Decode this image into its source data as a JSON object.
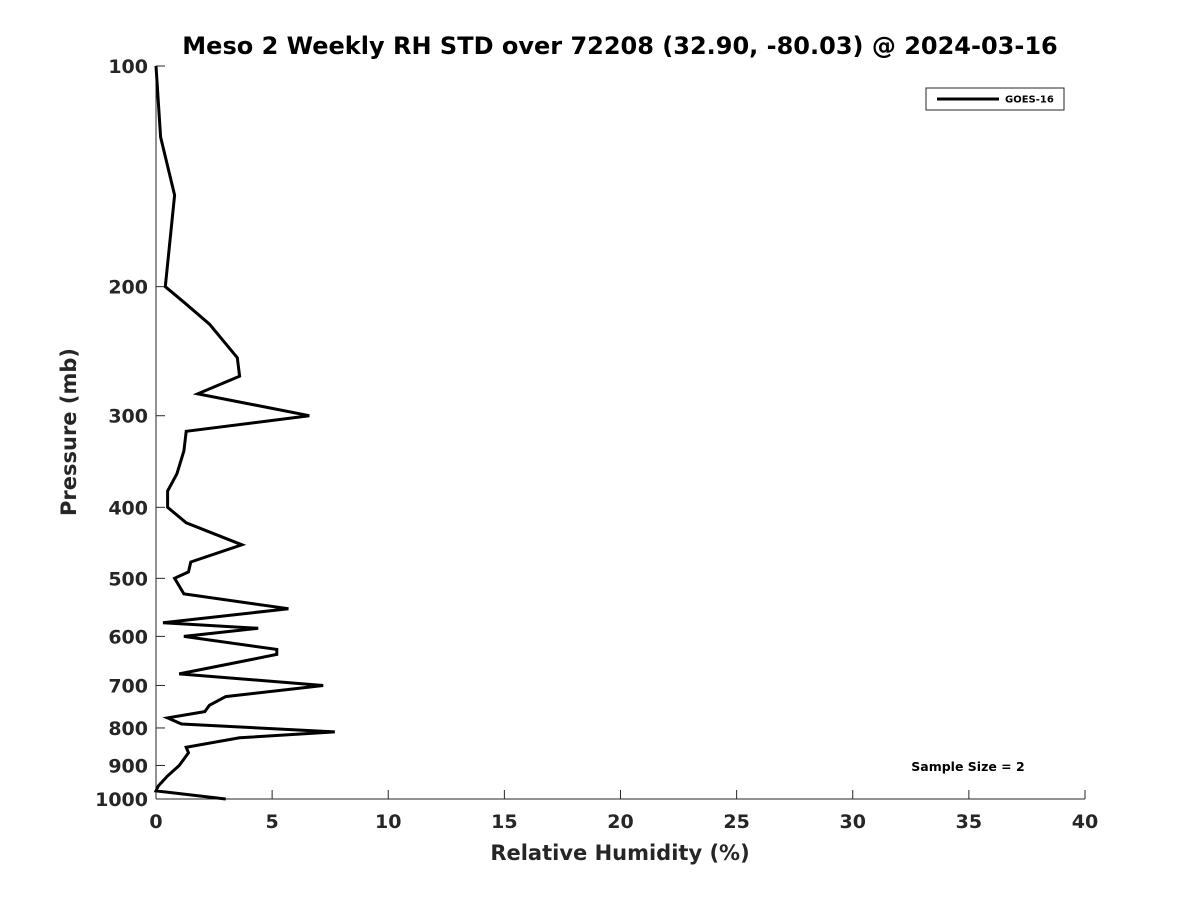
{
  "chart_data": {
    "type": "line",
    "title": "Meso 2 Weekly RH STD over 72208 (32.90, -80.03) @ 2024-03-16",
    "xlabel": "Relative Humidity (%)",
    "ylabel": "Pressure (mb)",
    "xlim": [
      0,
      40
    ],
    "ylim": [
      100,
      1000
    ],
    "y_scale": "log",
    "y_reversed": true,
    "x_ticks": [
      "0",
      "5",
      "10",
      "15",
      "20",
      "25",
      "30",
      "35",
      "40"
    ],
    "y_ticks": [
      "100",
      "200",
      "300",
      "400",
      "500",
      "600",
      "700",
      "800",
      "900",
      "1000"
    ],
    "grid": false,
    "legend_position": "top-right",
    "annotation": "Sample Size = 2",
    "series": [
      {
        "name": "GOES-16",
        "color": "#000000",
        "points": [
          [
            0.0,
            100
          ],
          [
            0.2,
            125
          ],
          [
            0.8,
            150
          ],
          [
            0.4,
            200
          ],
          [
            1.2,
            210
          ],
          [
            2.3,
            225
          ],
          [
            3.5,
            250
          ],
          [
            3.6,
            265
          ],
          [
            1.8,
            280
          ],
          [
            6.6,
            300
          ],
          [
            1.3,
            315
          ],
          [
            1.2,
            335
          ],
          [
            0.9,
            360
          ],
          [
            0.5,
            380
          ],
          [
            0.5,
            400
          ],
          [
            1.3,
            420
          ],
          [
            3.7,
            450
          ],
          [
            1.5,
            475
          ],
          [
            1.4,
            490
          ],
          [
            0.8,
            500
          ],
          [
            1.2,
            525
          ],
          [
            5.7,
            550
          ],
          [
            0.3,
            575
          ],
          [
            4.4,
            585
          ],
          [
            1.2,
            600
          ],
          [
            5.2,
            625
          ],
          [
            5.2,
            635
          ],
          [
            3.6,
            650
          ],
          [
            1.0,
            675
          ],
          [
            7.2,
            700
          ],
          [
            3.0,
            725
          ],
          [
            2.3,
            745
          ],
          [
            2.1,
            760
          ],
          [
            0.5,
            775
          ],
          [
            1.1,
            790
          ],
          [
            7.7,
            810
          ],
          [
            3.6,
            825
          ],
          [
            1.3,
            850
          ],
          [
            1.4,
            865
          ],
          [
            1.0,
            900
          ],
          [
            0.5,
            930
          ],
          [
            0.1,
            960
          ],
          [
            0.0,
            975
          ],
          [
            3.0,
            1000
          ]
        ]
      }
    ]
  }
}
